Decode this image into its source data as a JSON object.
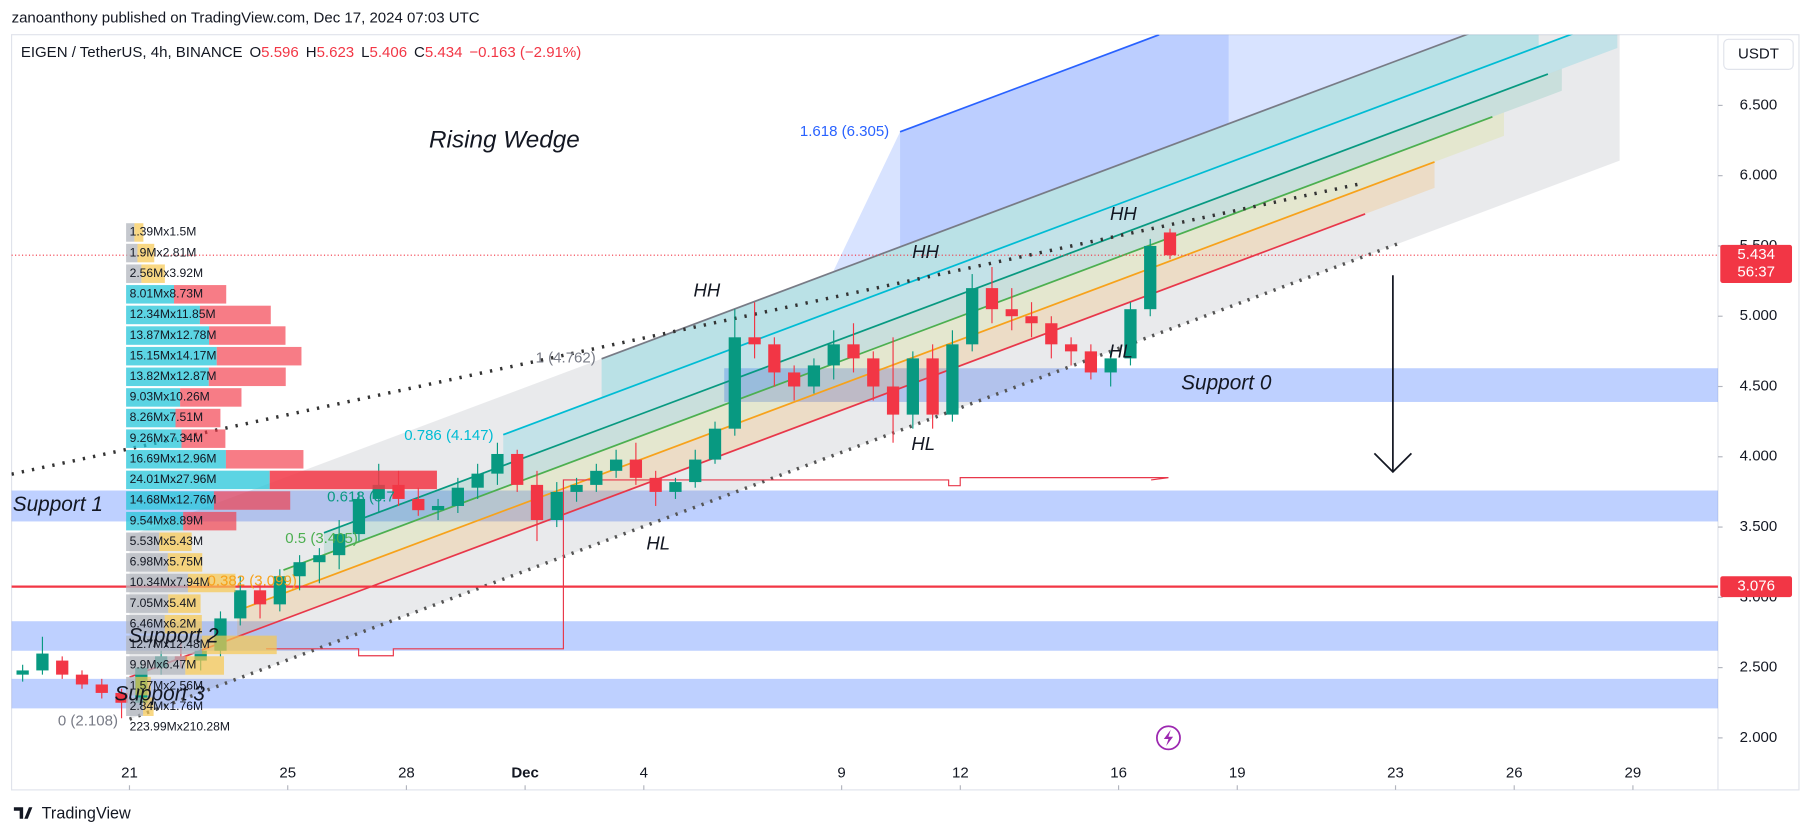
{
  "header": {
    "published": "zanoanthony published on TradingView.com, Dec 17, 2024 07:03 UTC",
    "logo": "TradingView"
  },
  "legend": {
    "symbol": "EIGEN / TetherUS, 4h, BINANCE",
    "ohlc": [
      {
        "key": "O",
        "value": "5.596"
      },
      {
        "key": "H",
        "value": "5.623"
      },
      {
        "key": "L",
        "value": "5.406"
      },
      {
        "key": "C",
        "value": "5.434"
      }
    ],
    "change": "−0.163 (−2.91%)"
  },
  "currency": "USDT",
  "chart_data": {
    "type": "candlestick",
    "x": [
      -2.7,
      -2.2,
      -1.7,
      -1.2,
      -0.7,
      -0.2,
      0.3,
      0.8,
      1.3,
      1.8,
      2.3,
      2.8,
      3.3,
      3.8,
      4.3,
      4.8,
      5.3,
      5.8,
      6.3,
      6.8,
      7.3,
      7.8,
      8.3,
      8.8,
      9.3,
      9.8,
      10.3,
      10.8,
      11.3,
      11.8,
      12.3,
      12.8,
      13.3,
      13.8,
      14.3,
      14.8,
      15.3,
      15.8,
      16.3,
      16.8,
      17.3,
      17.8,
      18.3,
      18.8,
      19.3,
      19.8,
      20.3,
      20.8,
      21.3,
      21.8,
      22.3,
      22.8,
      23.3,
      23.8,
      24.3,
      24.8,
      25.3,
      25.8,
      26.3
    ],
    "open": [
      2.45,
      2.48,
      2.55,
      2.45,
      2.38,
      2.32,
      2.25,
      2.5,
      2.58,
      2.55,
      2.62,
      2.85,
      3.05,
      2.95,
      3.15,
      3.25,
      3.3,
      3.45,
      3.7,
      3.8,
      3.7,
      3.62,
      3.65,
      3.78,
      3.88,
      4.02,
      3.8,
      3.55,
      3.75,
      3.8,
      3.9,
      3.98,
      3.85,
      3.75,
      3.82,
      3.98,
      4.2,
      4.85,
      4.8,
      4.6,
      4.5,
      4.65,
      4.8,
      4.7,
      4.5,
      4.3,
      4.7,
      4.3,
      4.8,
      5.2,
      5.05,
      5.0,
      4.95,
      4.8,
      4.75,
      4.6,
      4.7,
      5.05,
      5.596
    ],
    "high": [
      2.52,
      2.72,
      2.58,
      2.48,
      2.42,
      2.35,
      2.55,
      2.62,
      2.7,
      2.68,
      2.9,
      3.15,
      3.1,
      3.2,
      3.3,
      3.35,
      3.55,
      3.75,
      3.95,
      3.9,
      3.78,
      3.7,
      3.85,
      3.95,
      4.1,
      4.05,
      3.9,
      3.82,
      3.85,
      3.95,
      4.05,
      4.1,
      3.9,
      3.85,
      4.05,
      4.25,
      5.05,
      5.1,
      4.85,
      4.65,
      4.7,
      4.9,
      4.95,
      4.75,
      4.85,
      4.75,
      4.8,
      4.9,
      5.3,
      5.35,
      5.2,
      5.1,
      5.0,
      4.85,
      4.8,
      4.75,
      5.1,
      5.55,
      5.623
    ],
    "low": [
      2.4,
      2.45,
      2.42,
      2.35,
      2.28,
      2.14,
      2.22,
      2.45,
      2.5,
      2.48,
      2.58,
      2.8,
      2.85,
      2.9,
      3.05,
      3.1,
      3.2,
      3.4,
      3.6,
      3.65,
      3.58,
      3.55,
      3.6,
      3.7,
      3.8,
      3.75,
      3.4,
      3.5,
      3.68,
      3.75,
      3.85,
      3.8,
      3.65,
      3.7,
      3.78,
      3.95,
      4.15,
      4.7,
      4.5,
      4.4,
      4.45,
      4.55,
      4.6,
      4.4,
      4.1,
      4.2,
      4.2,
      4.25,
      4.75,
      4.95,
      4.9,
      4.85,
      4.7,
      4.65,
      4.55,
      4.5,
      4.65,
      5.0,
      5.406
    ],
    "close": [
      2.48,
      2.6,
      2.45,
      2.38,
      2.32,
      2.25,
      2.5,
      2.58,
      2.55,
      2.62,
      2.85,
      3.05,
      2.95,
      3.15,
      3.25,
      3.3,
      3.45,
      3.7,
      3.8,
      3.7,
      3.62,
      3.65,
      3.78,
      3.88,
      4.02,
      3.8,
      3.55,
      3.75,
      3.8,
      3.9,
      3.98,
      3.85,
      3.75,
      3.82,
      3.98,
      4.2,
      4.85,
      4.8,
      4.6,
      4.5,
      4.65,
      4.8,
      4.7,
      4.5,
      4.3,
      4.7,
      4.3,
      4.8,
      5.2,
      5.05,
      5.0,
      4.95,
      4.8,
      4.75,
      4.6,
      4.7,
      5.05,
      5.5,
      5.434
    ],
    "xlim": [
      -2.98,
      40.15
    ],
    "xticks": [
      {
        "value": 0,
        "label": "21"
      },
      {
        "value": 4,
        "label": "25"
      },
      {
        "value": 7,
        "label": "28"
      },
      {
        "value": 10,
        "label": "Dec"
      },
      {
        "value": 13,
        "label": "4"
      },
      {
        "value": 18,
        "label": "9"
      },
      {
        "value": 21,
        "label": "12"
      },
      {
        "value": 25,
        "label": "16"
      },
      {
        "value": 28,
        "label": "19"
      },
      {
        "value": 32,
        "label": "23"
      },
      {
        "value": 35,
        "label": "26"
      },
      {
        "value": 38,
        "label": "29"
      }
    ],
    "ylim": [
      1.63,
      7.003
    ],
    "yticks": [
      {
        "value": 2,
        "label": "2.000"
      },
      {
        "value": 2.5,
        "label": "2.500"
      },
      {
        "value": 3,
        "label": "3.000"
      },
      {
        "value": 3.5,
        "label": "3.500"
      },
      {
        "value": 4,
        "label": "4.000"
      },
      {
        "value": 4.5,
        "label": "4.500"
      },
      {
        "value": 5,
        "label": "5.000"
      },
      {
        "value": 5.5,
        "label": "5.500"
      },
      {
        "value": 6,
        "label": "6.000"
      },
      {
        "value": 6.5,
        "label": "6.500"
      }
    ],
    "last_price": 5.434,
    "countdown": "56:37",
    "level": 3.076,
    "zones": [
      {
        "label": "Support 0",
        "from": 4.39,
        "to": 4.63
      },
      {
        "label": "Support 1",
        "from": 3.54,
        "to": 3.76
      },
      {
        "label": "Support 2",
        "from": 2.62,
        "to": 2.83
      },
      {
        "label": "Support 3",
        "from": 2.21,
        "to": 2.42
      }
    ],
    "annotations": [
      "Rising Wedge",
      "HH",
      "HH",
      "HH",
      "HL",
      "HL",
      "HL"
    ],
    "fib_labels": [
      "1.618 (6.305)",
      "1 (4.762)",
      "0.786 (4.147)",
      "0.618 (3.7",
      "0.5 (3.405)",
      "0.382 (3.099)",
      "0 (2.108)"
    ],
    "volume_profile": {
      "buy": [
        1.39,
        1.9,
        2.56,
        8.01,
        12.34,
        13.87,
        15.15,
        13.82,
        9.03,
        8.26,
        9.26,
        16.69,
        24.01,
        14.68,
        9.54,
        5.53,
        6.98,
        10.34,
        7.05,
        6.46,
        12.7,
        9.9,
        1.57,
        2.84
      ],
      "sell": [
        1.5,
        2.81,
        3.92,
        8.73,
        11.85,
        12.78,
        14.17,
        12.87,
        10.26,
        7.51,
        7.34,
        12.96,
        27.96,
        12.76,
        8.89,
        5.43,
        5.75,
        7.94,
        5.4,
        6.2,
        12.48,
        6.47,
        2.56,
        1.76
      ],
      "row_labels": [
        "1.39Mx1.5M",
        "1.9Mx2.81M",
        "2.56Mx3.92M",
        "8.01Mx8.73M",
        "12.34Mx11.85M",
        "13.87Mx12.78M",
        "15.15Mx14.17M",
        "13.82Mx12.87M",
        "9.03Mx10.26M",
        "8.26Mx7.51M",
        "9.26Mx7.34M",
        "16.69Mx12.96M",
        "24.01Mx27.96M",
        "14.68Mx12.76M",
        "9.54Mx8.89M",
        "5.53Mx5.43M",
        "6.98Mx5.75M",
        "10.34Mx7.94M",
        "7.05Mx5.4M",
        "6.46Mx6.2M",
        "12.7Mx12.48M",
        "9.9Mx6.47M",
        "1.57Mx2.56M",
        "2.84Mx1.76M"
      ],
      "total_label": "223.99Mx210.28M"
    }
  }
}
